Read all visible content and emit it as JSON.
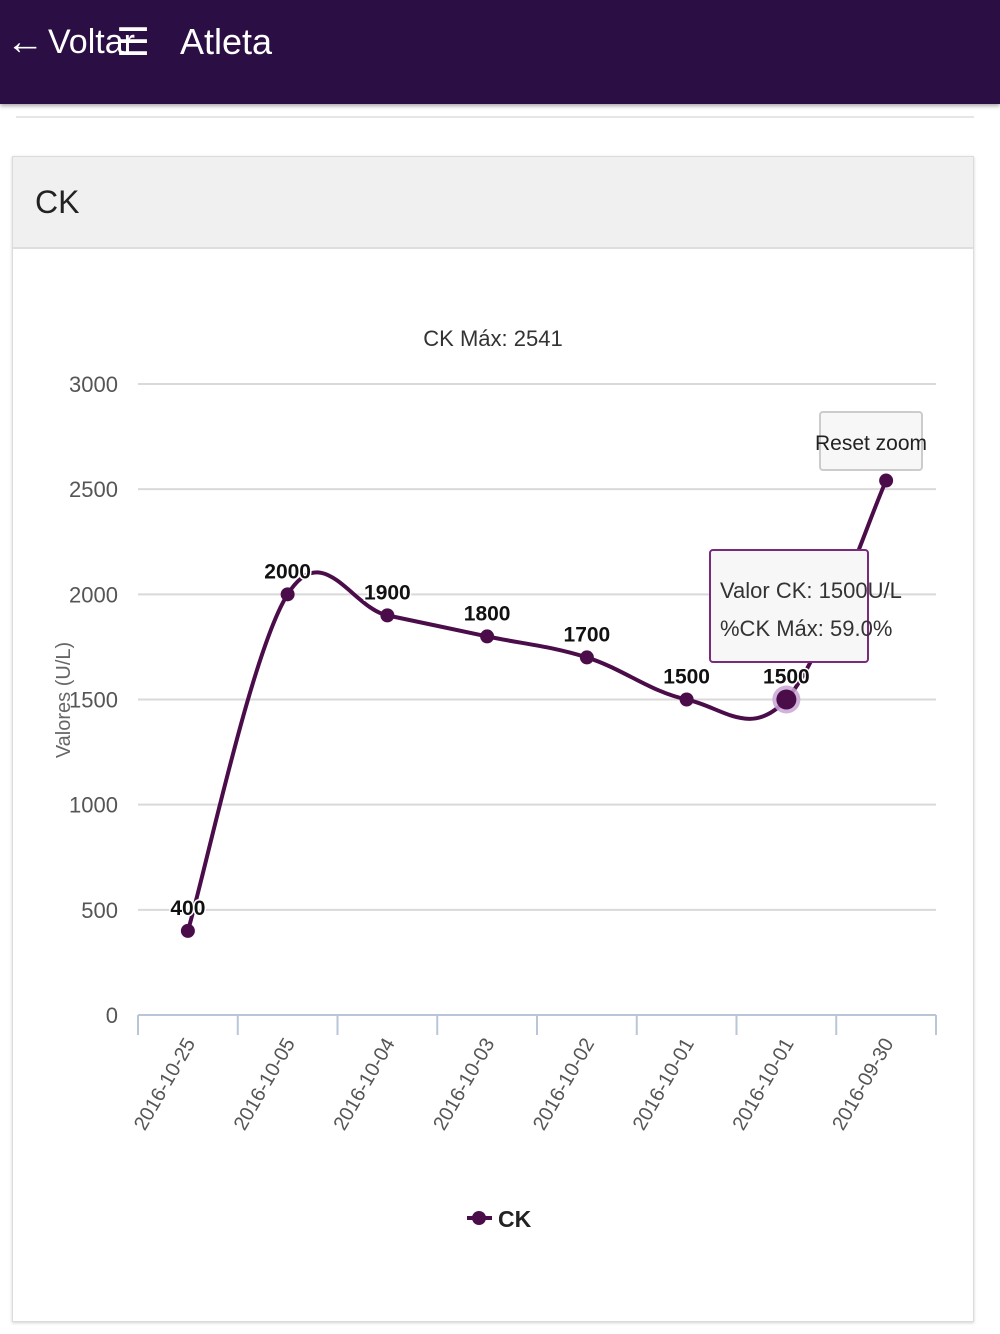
{
  "header": {
    "back_label": "Voltar",
    "back_icon": "arrow-left-icon",
    "menu_icon": "hamburger-menu-icon",
    "title": "Atleta",
    "background_color": "#2b0e44"
  },
  "card": {
    "title": "CK"
  },
  "chart_data": {
    "type": "line",
    "title": "CK Máx: 2541",
    "ylabel": "Valores (U/L)",
    "xlabel": "",
    "categories": [
      "2016-10-25",
      "2016-10-05",
      "2016-10-04",
      "2016-10-03",
      "2016-10-02",
      "2016-10-01",
      "2016-10-01",
      "2016-09-30"
    ],
    "series": [
      {
        "name": "CK",
        "values": [
          400,
          2000,
          1900,
          1800,
          1700,
          1500,
          1500,
          2541
        ],
        "data_labels": [
          "400",
          "2000",
          "1900",
          "1800",
          "1700",
          "1500",
          "1500",
          ""
        ],
        "color": "#4b0d4a"
      }
    ],
    "ylim": [
      0,
      3000
    ],
    "yticks": [
      "0",
      "500",
      "1000",
      "1500",
      "2000",
      "2500",
      "3000"
    ],
    "grid": true,
    "legend": "bottom-center",
    "reset_zoom_label": "Reset zoom",
    "tooltip": {
      "point_index": 6,
      "line1": "Valor CK: 1500U/L",
      "line2": "%CK Máx: 59.0%"
    }
  }
}
